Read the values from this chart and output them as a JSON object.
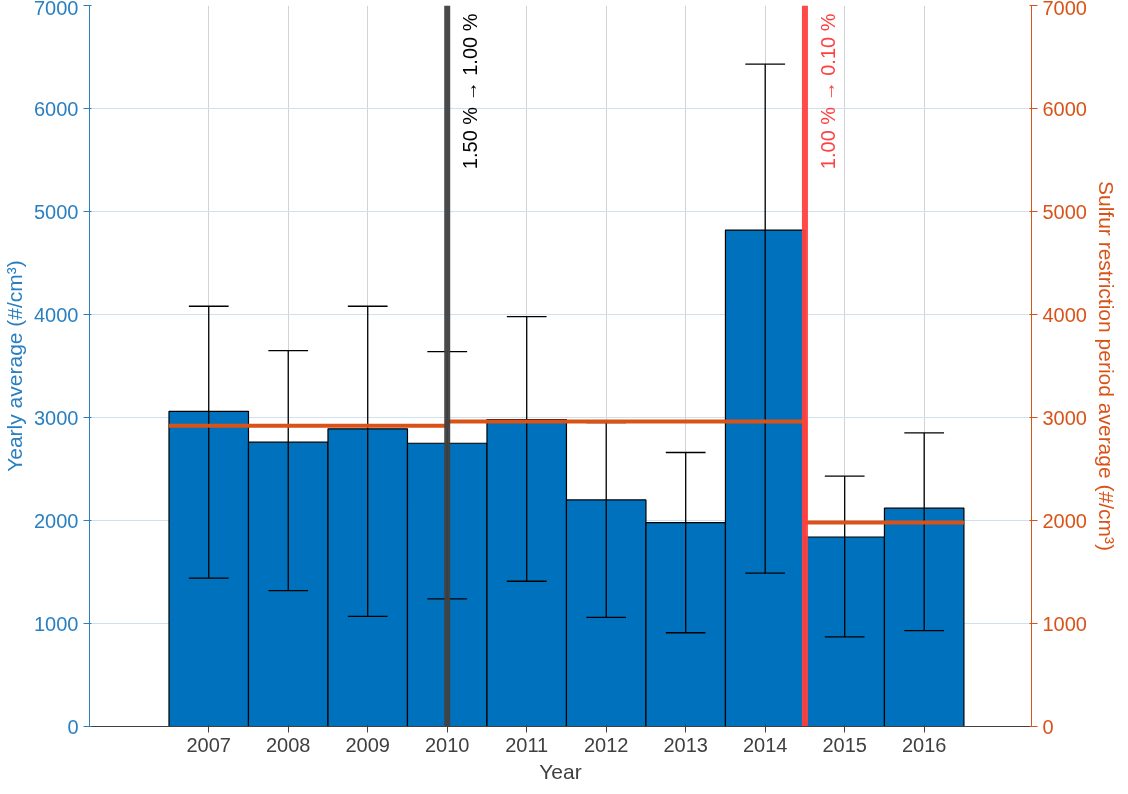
{
  "chart_data": {
    "type": "bar",
    "xlabel": "Year",
    "ylabel": "Yearly average (#/cm³)",
    "y2label": "Sulfur restriction period average (#/cm³)",
    "x": [
      2007,
      2008,
      2009,
      2010,
      2011,
      2012,
      2013,
      2014,
      2015,
      2016
    ],
    "xlim": [
      2005.5,
      2017.35
    ],
    "xticks": [
      2007,
      2008,
      2009,
      2010,
      2011,
      2012,
      2013,
      2014,
      2015,
      2016
    ],
    "ylim": [
      0,
      7000
    ],
    "yticks": [
      0,
      1000,
      2000,
      3000,
      4000,
      5000,
      6000,
      7000
    ],
    "y2lim": [
      0,
      7000
    ],
    "y2ticks": [
      0,
      1000,
      2000,
      3000,
      4000,
      5000,
      6000,
      7000
    ],
    "series": [
      {
        "color": "#0072bd",
        "values": [
          3060,
          2760,
          2890,
          2750,
          2980,
          2200,
          1980,
          4820,
          1840,
          2120
        ],
        "errors": [
          [
            1440,
            4080
          ],
          [
            1320,
            3650
          ],
          [
            1070,
            4080
          ],
          [
            1240,
            3640
          ],
          [
            1410,
            3980
          ],
          [
            1060,
            2950
          ],
          [
            910,
            2660
          ],
          [
            1490,
            6430
          ],
          [
            870,
            2430
          ],
          [
            930,
            2850
          ]
        ]
      },
      {
        "type": "line",
        "axis": "y2",
        "color": "#d95319",
        "x": [
          2006.5,
          2010,
          2010,
          2014.5,
          2014.5,
          2016.5
        ],
        "values": [
          2920,
          2920,
          2960,
          2960,
          1980,
          1980
        ]
      }
    ],
    "ref_lines": [
      {
        "axis": "x",
        "value": 2010,
        "label": "1.50 % → 1.00 %",
        "color": "#404040"
      },
      {
        "axis": "x",
        "value": 2014.5,
        "label": "1.00 % → 0.10 %",
        "color": "#ff4040"
      }
    ],
    "grid": true
  }
}
